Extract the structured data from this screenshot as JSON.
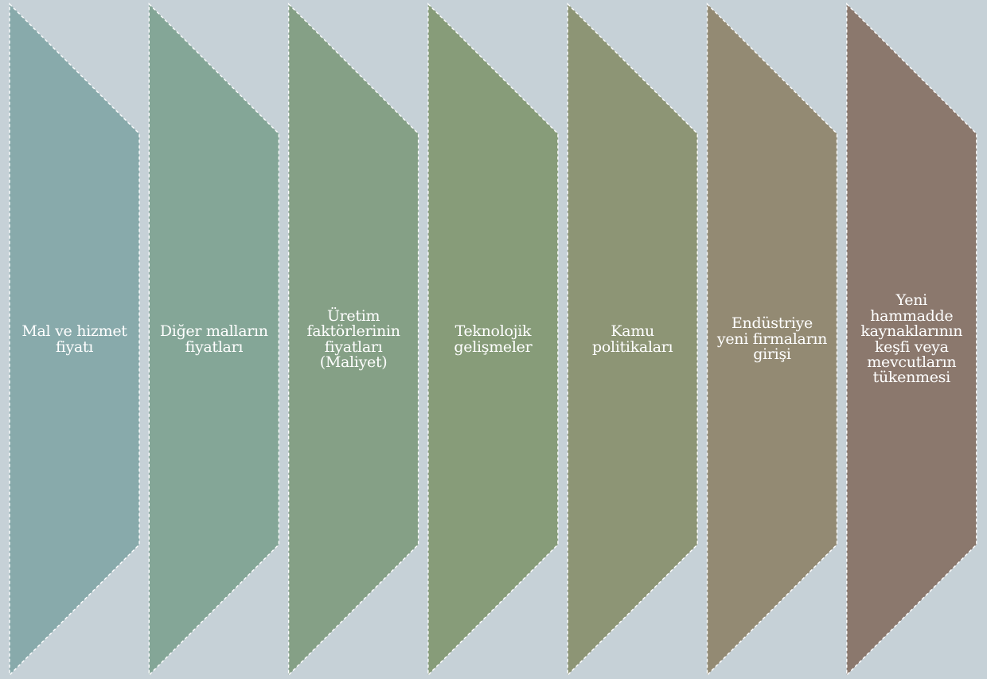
{
  "background_color": "#c6d1d7",
  "outline_color": "#ffffff",
  "text_color": "#ffffff",
  "steps": [
    {
      "label": "Mal ve hizmet fiyatı",
      "color": "#88aaab"
    },
    {
      "label": "Diğer malların fiyatları",
      "color": "#84a697"
    },
    {
      "label": "Üretim faktörlerinin fiyatları (Maliyet)",
      "color": "#85a086"
    },
    {
      "label": "Teknolojik gelişmeler",
      "color": "#879c79"
    },
    {
      "label": "Kamu politikaları",
      "color": "#8d9575"
    },
    {
      "label": "Endüstriye yeni firmaların girişi",
      "color": "#938a73"
    },
    {
      "label": "Yeni hammadde kaynaklarının keşfi veya mevcutların tükenmesi",
      "color": "#8b786d"
    }
  ]
}
